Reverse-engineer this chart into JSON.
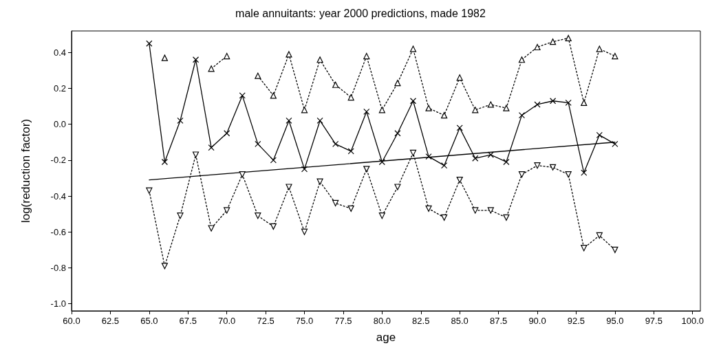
{
  "chart_data": {
    "type": "line",
    "title": "male annuitants: year 2000 predictions, made 1982",
    "xlabel": "age",
    "ylabel": "log(reduction factor)",
    "xlim": [
      60,
      100.5
    ],
    "xticks": [
      {
        "value": 60,
        "label": "60.0"
      },
      {
        "value": 62.5,
        "label": "62.5"
      },
      {
        "value": 65,
        "label": "65.0"
      },
      {
        "value": 67.5,
        "label": "67.5"
      },
      {
        "value": 70,
        "label": "70.0"
      },
      {
        "value": 72.5,
        "label": "72.5"
      },
      {
        "value": 75,
        "label": "75.0"
      },
      {
        "value": 77.5,
        "label": "77.5"
      },
      {
        "value": 80,
        "label": "80.0"
      },
      {
        "value": 82.5,
        "label": "82.5"
      },
      {
        "value": 85,
        "label": "85.0"
      },
      {
        "value": 87.5,
        "label": "87.5"
      },
      {
        "value": 90,
        "label": "90.0"
      },
      {
        "value": 92.5,
        "label": "92.5"
      },
      {
        "value": 95,
        "label": "95.0"
      },
      {
        "value": 97.5,
        "label": "97.5"
      },
      {
        "value": 100,
        "label": "100.0"
      }
    ],
    "ylim": [
      -1.04,
      0.52
    ],
    "yticks": [
      {
        "value": -1,
        "label": "-1.0"
      },
      {
        "value": -0.8,
        "label": "-0.8"
      },
      {
        "value": -0.6,
        "label": "-0.6"
      },
      {
        "value": -0.4,
        "label": "-0.4"
      },
      {
        "value": -0.2,
        "label": "-0.2"
      },
      {
        "value": 0,
        "label": "0.0"
      },
      {
        "value": 0.2,
        "label": "0.2"
      },
      {
        "value": 0.4,
        "label": "0.4"
      }
    ],
    "grid": false,
    "x": [
      65,
      66,
      67,
      68,
      69,
      70,
      71,
      72,
      73,
      74,
      75,
      76,
      77,
      78,
      79,
      80,
      81,
      82,
      83,
      84,
      85,
      86,
      87,
      88,
      89,
      90,
      91,
      92,
      93,
      94,
      95
    ],
    "series": [
      {
        "color": "#000000",
        "marker": "cross",
        "line_style": "solid",
        "values": [
          0.45,
          -0.21,
          0.02,
          0.36,
          -0.13,
          -0.05,
          0.16,
          -0.11,
          -0.2,
          0.02,
          -0.25,
          0.02,
          -0.11,
          -0.15,
          0.07,
          -0.21,
          -0.05,
          0.13,
          -0.18,
          -0.23,
          -0.02,
          -0.19,
          -0.17,
          -0.21,
          0.05,
          0.11,
          0.13,
          0.12,
          -0.27,
          -0.06,
          -0.11
        ]
      },
      {
        "color": "#000000",
        "marker": "triangle",
        "line_style": "dotted",
        "values": [
          null,
          0.37,
          null,
          null,
          0.31,
          0.38,
          null,
          0.27,
          0.16,
          0.39,
          0.08,
          0.36,
          0.22,
          0.15,
          0.38,
          0.08,
          0.23,
          0.42,
          0.09,
          0.05,
          0.26,
          0.08,
          0.11,
          0.09,
          0.36,
          0.43,
          0.46,
          0.48,
          0.12,
          0.42,
          0.38
        ]
      },
      {
        "color": "#000000",
        "marker": "triangle-down",
        "line_style": "dotted",
        "values": [
          -0.37,
          -0.79,
          -0.51,
          -0.17,
          -0.58,
          -0.48,
          -0.28,
          -0.51,
          -0.57,
          -0.35,
          -0.6,
          -0.32,
          -0.44,
          -0.47,
          -0.25,
          -0.51,
          -0.35,
          -0.16,
          -0.47,
          -0.52,
          -0.31,
          -0.48,
          -0.48,
          -0.52,
          -0.28,
          -0.23,
          -0.24,
          -0.28,
          -0.69,
          -0.62,
          -0.7
        ]
      },
      {
        "color": "#000000",
        "marker": "none",
        "line_style": "solid",
        "x": [
          65,
          95
        ],
        "values": [
          -0.31,
          -0.1
        ]
      }
    ]
  }
}
